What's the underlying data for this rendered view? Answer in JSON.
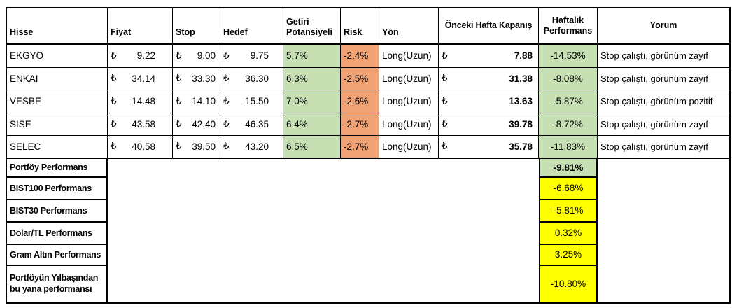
{
  "table": {
    "currency_symbol": "₺",
    "columns": [
      "Hisse",
      "Fiyat",
      "Stop",
      "Hedef",
      "Getiri Potansiyeli",
      "Risk",
      "Yön",
      "Önceki Hafta Kapanış",
      "Haftalık Performans",
      "Yorum"
    ],
    "rows": [
      {
        "hisse": "EKGYO",
        "fiyat": "9.22",
        "stop": "9.00",
        "hedef": "9.75",
        "getiri": "5.7%",
        "risk": "-2.4%",
        "yon": "Long(Uzun)",
        "onceki": "7.88",
        "haftalik": "-14.53%",
        "yorum": "Stop çalıştı, görünüm zayıf"
      },
      {
        "hisse": "ENKAI",
        "fiyat": "34.14",
        "stop": "33.30",
        "hedef": "36.30",
        "getiri": "6.3%",
        "risk": "-2.5%",
        "yon": "Long(Uzun)",
        "onceki": "31.38",
        "haftalik": "-8.08%",
        "yorum": "Stop çalıştı, görünüm zayıf"
      },
      {
        "hisse": "VESBE",
        "fiyat": "14.48",
        "stop": "14.10",
        "hedef": "15.50",
        "getiri": "7.0%",
        "risk": "-2.6%",
        "yon": "Long(Uzun)",
        "onceki": "13.63",
        "haftalik": "-5.87%",
        "yorum": "Stop çalıştı, görünüm pozitif"
      },
      {
        "hisse": "SISE",
        "fiyat": "43.58",
        "stop": "42.40",
        "hedef": "46.35",
        "getiri": "6.4%",
        "risk": "-2.7%",
        "yon": "Long(Uzun)",
        "onceki": "39.78",
        "haftalik": "-8.72%",
        "yorum": "Stop çalıştı, görünüm zayıf"
      },
      {
        "hisse": "SELEC",
        "fiyat": "40.58",
        "stop": "39.50",
        "hedef": "43.20",
        "getiri": "6.5%",
        "risk": "-2.7%",
        "yon": "Long(Uzun)",
        "onceki": "35.78",
        "haftalik": "-11.83%",
        "yorum": "Stop çalıştı, görünüm zayıf"
      }
    ],
    "summary_rows": [
      {
        "label": "Portföy Performans",
        "value": "-9.81%",
        "highlight": "green"
      },
      {
        "label": "BIST100 Performans",
        "value": "-6.68%",
        "highlight": "yellow"
      },
      {
        "label": "BIST30 Performans",
        "value": "-5.81%",
        "highlight": "yellow"
      },
      {
        "label": "Dolar/TL Performans",
        "value": "0.32%",
        "highlight": "yellow"
      },
      {
        "label": "Gram Altın Performans",
        "value": "3.25%",
        "highlight": "yellow"
      },
      {
        "label": "Portföyün Yılbaşından bu yana performansı",
        "value": "-10.80%",
        "highlight": "yellow"
      }
    ],
    "colors": {
      "positive_green": "#C6E0B4",
      "risk_orange": "#F0A275",
      "highlight_yellow": "#FFFF00",
      "border": "#000000"
    }
  }
}
